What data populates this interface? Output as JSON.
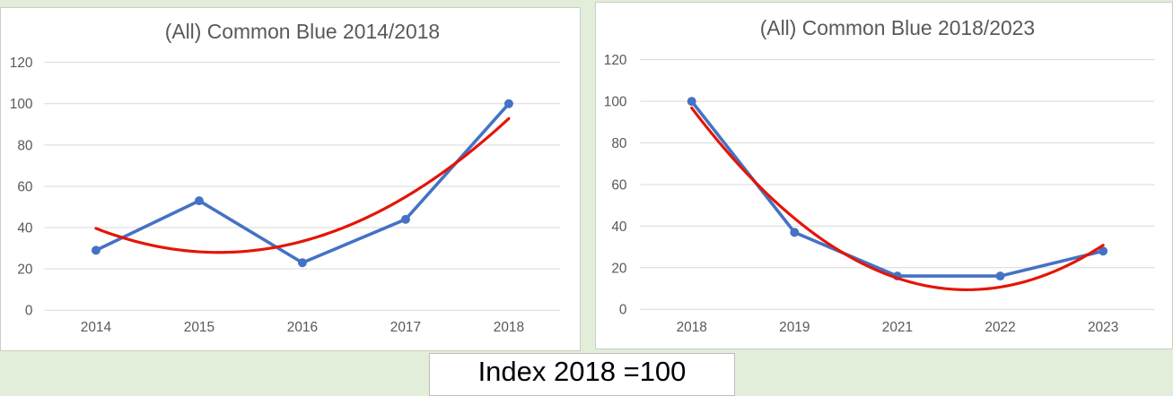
{
  "footer": {
    "label": "Index 2018 =100"
  },
  "colors": {
    "background": "#e2eeda",
    "panel_background": "#ffffff",
    "panel_border": "#c9cfc0",
    "series_blue": "#4472c4",
    "trendline_red": "#e41507",
    "gridline_gray": "#d9d9d9",
    "axis_text_gray": "#595959",
    "footer_text": "#000000",
    "footer_border": "#bdbdbd"
  },
  "chart_data": [
    {
      "type": "line",
      "title": "(All) Common Blue 2014/2018",
      "categories": [
        "2014",
        "2015",
        "2016",
        "2017",
        "2018"
      ],
      "series": [
        {
          "name": "(All) Common Blue",
          "values": [
            29,
            53,
            23,
            44,
            100
          ]
        }
      ],
      "trendline": {
        "type": "polynomial",
        "order": 2
      },
      "y_ticks": [
        0,
        20,
        40,
        60,
        80,
        100,
        120
      ],
      "ylim": [
        0,
        120
      ],
      "grid": true,
      "legend": "none",
      "markers": true
    },
    {
      "type": "line",
      "title": "(All) Common Blue 2018/2023",
      "categories": [
        "2018",
        "2019",
        "2021",
        "2022",
        "2023"
      ],
      "series": [
        {
          "name": "(All) Common Blue",
          "values": [
            100,
            37,
            16,
            16,
            28
          ]
        }
      ],
      "trendline": {
        "type": "polynomial",
        "order": 2
      },
      "y_ticks": [
        0,
        20,
        40,
        60,
        80,
        100,
        120
      ],
      "ylim": [
        0,
        120
      ],
      "grid": true,
      "legend": "none",
      "markers": true
    }
  ]
}
